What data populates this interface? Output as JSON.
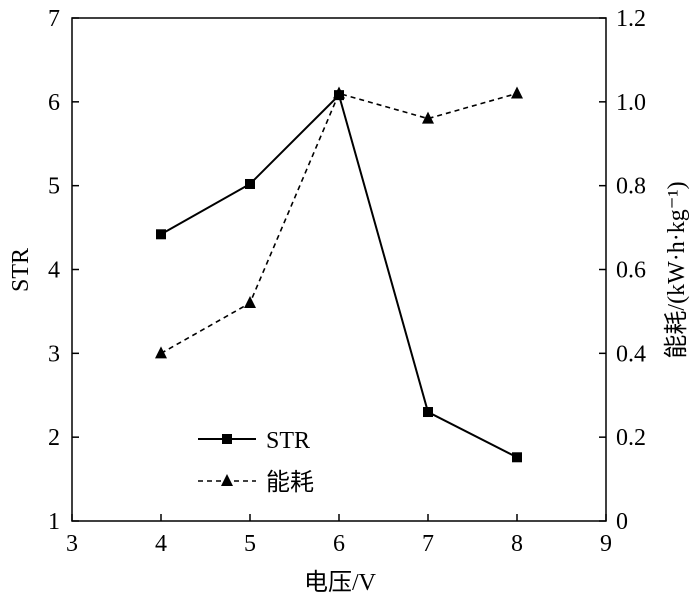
{
  "chart_data": {
    "type": "line",
    "title": "",
    "xlabel": "电压/V",
    "ylabel_left": "STR",
    "ylabel_right": "能耗/(kW·h·kg⁻¹)",
    "xlim": [
      3,
      9
    ],
    "ylim_left": [
      1,
      7
    ],
    "ylim_right": [
      0,
      1.2
    ],
    "x_ticks": [
      "3",
      "4",
      "5",
      "6",
      "7",
      "8",
      "9"
    ],
    "y_left_ticks": [
      "1",
      "2",
      "3",
      "4",
      "5",
      "6",
      "7"
    ],
    "y_right_ticks": [
      "0",
      "0.2",
      "0.4",
      "0.6",
      "0.8",
      "1.0",
      "1.2"
    ],
    "grid": false,
    "legend_position": "bottom-left",
    "series": [
      {
        "name": "STR",
        "axis": "left",
        "marker": "square",
        "line_style": "solid",
        "color": "#000000",
        "x": [
          4,
          5,
          6,
          7,
          8
        ],
        "y": [
          4.42,
          5.02,
          6.08,
          2.3,
          1.76
        ]
      },
      {
        "name": "能耗",
        "axis": "right",
        "marker": "triangle",
        "line_style": "dashed",
        "color": "#000000",
        "x": [
          4,
          5,
          6,
          7,
          8
        ],
        "y": [
          0.4,
          0.52,
          1.02,
          0.96,
          1.02
        ]
      }
    ]
  }
}
